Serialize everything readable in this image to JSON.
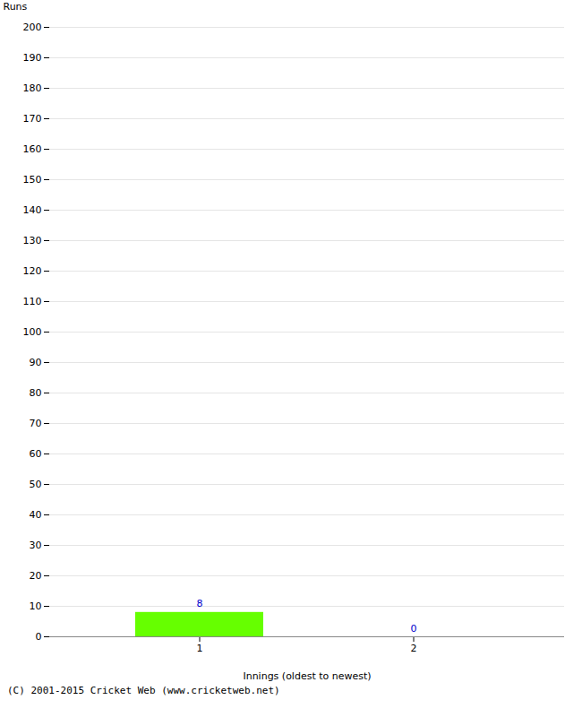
{
  "chart_data": {
    "type": "bar",
    "xlabel": "Innings (oldest to newest)",
    "ylabel": "Runs",
    "categories": [
      1,
      2
    ],
    "values": [
      8,
      0
    ],
    "color": "#66ff00",
    "label_color": "#0000cc",
    "data_labels": true,
    "ylim": [
      0,
      200
    ],
    "yticks": [
      0,
      10,
      20,
      30,
      40,
      50,
      60,
      70,
      80,
      90,
      100,
      110,
      120,
      130,
      140,
      150,
      160,
      170,
      180,
      190,
      200
    ],
    "grid": true,
    "footer": "(C) 2001-2015 Cricket Web (www.cricketweb.net)"
  }
}
